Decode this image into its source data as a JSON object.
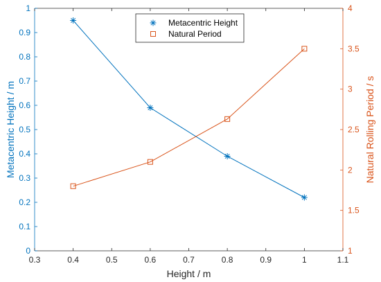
{
  "chart_data": {
    "type": "line",
    "xlabel": "Height / m",
    "xlim": [
      0.3,
      1.1
    ],
    "xticks": [
      "0.3",
      "0.4",
      "0.5",
      "0.6",
      "0.7",
      "0.8",
      "0.9",
      "1",
      "1.1"
    ],
    "left_axis": {
      "label": "Metacentric Height / m",
      "lim": [
        0,
        1
      ],
      "ticks": [
        "0",
        "0.1",
        "0.2",
        "0.3",
        "0.4",
        "0.5",
        "0.6",
        "0.7",
        "0.8",
        "0.9",
        "1"
      ],
      "color": "#0072BD"
    },
    "right_axis": {
      "label": "Natural Rolling Period / s",
      "lim": [
        1,
        4
      ],
      "ticks": [
        "1",
        "1.5",
        "2",
        "2.5",
        "3",
        "3.5",
        "4"
      ],
      "color": "#D95319"
    },
    "grid": false,
    "legend_position": "top-center",
    "series": [
      {
        "name": "Metacentric Height",
        "axis": "left",
        "marker": "asterisk",
        "color": "#0072BD",
        "x": [
          0.4,
          0.6,
          0.8,
          1.0
        ],
        "y": [
          0.95,
          0.59,
          0.39,
          0.22
        ]
      },
      {
        "name": "Natural Period",
        "axis": "right",
        "marker": "square",
        "color": "#D95319",
        "x": [
          0.4,
          0.6,
          0.8,
          1.0
        ],
        "y": [
          1.8,
          2.1,
          2.63,
          3.5
        ]
      }
    ]
  }
}
